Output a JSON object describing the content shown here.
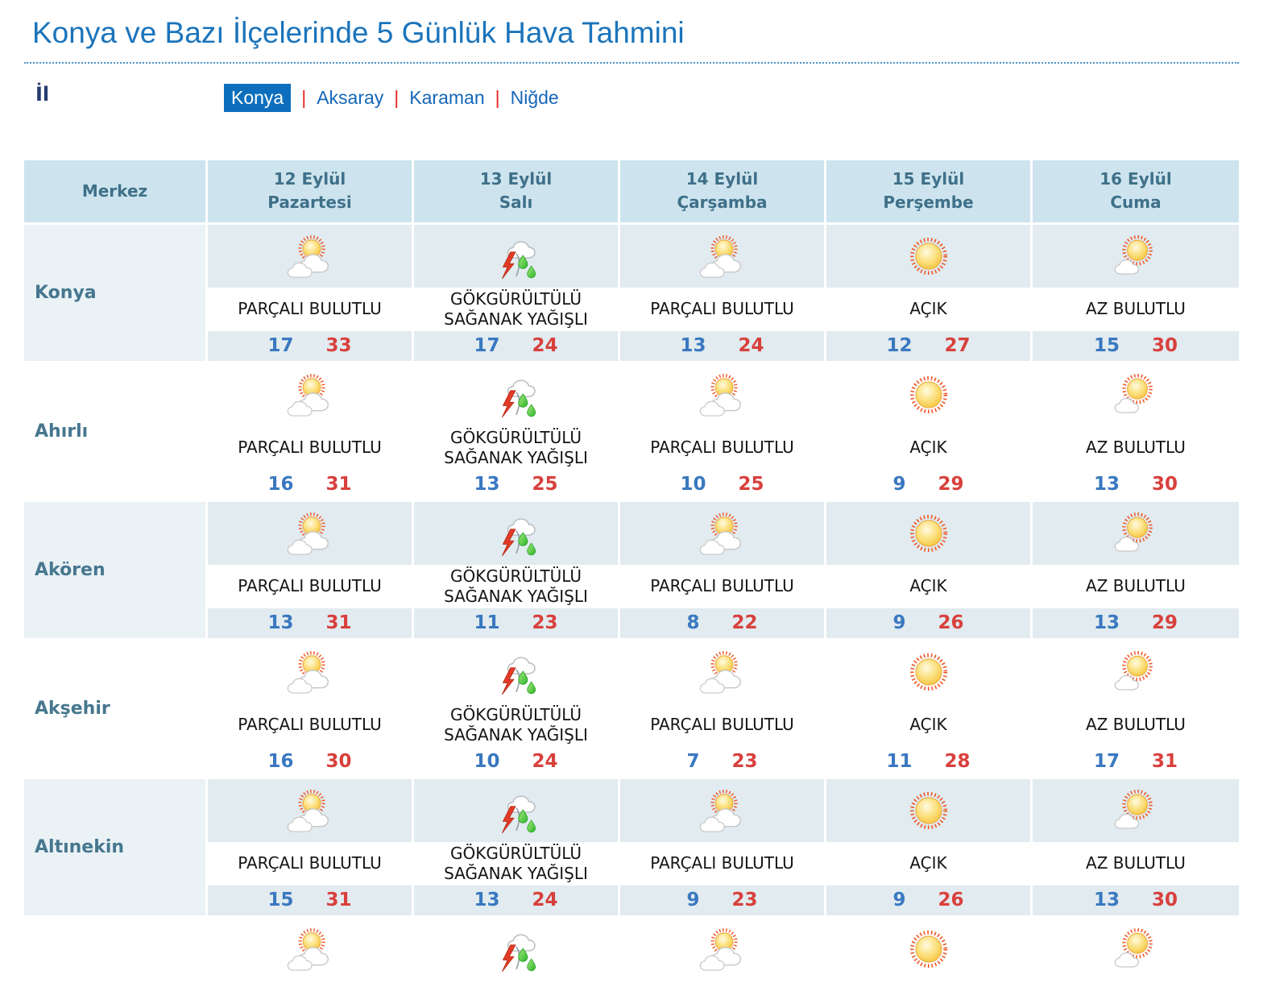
{
  "title": "Konya ve Bazı İlçelerinde 5 Günlük Hava Tahmini",
  "filter": {
    "label": "İl",
    "separator": "|",
    "selected": "Konya",
    "options": [
      "Konya",
      "Aksaray",
      "Karaman",
      "Niğde"
    ]
  },
  "table": {
    "corner": "Merkez",
    "days": [
      {
        "date": "12 Eylül",
        "name": "Pazartesi"
      },
      {
        "date": "13 Eylül",
        "name": "Salı"
      },
      {
        "date": "14 Eylül",
        "name": "Çarşamba"
      },
      {
        "date": "15 Eylül",
        "name": "Perşembe"
      },
      {
        "date": "16 Eylül",
        "name": "Cuma"
      }
    ],
    "rows": [
      {
        "name": "Konya",
        "cells": [
          {
            "icon": "partly-cloudy",
            "desc": "PARÇALI BULUTLU",
            "min": "17",
            "max": "33"
          },
          {
            "icon": "thunderstorm",
            "desc": "GÖKGÜRÜLTÜLÜ SAĞANAK YAĞIŞLI",
            "min": "17",
            "max": "24"
          },
          {
            "icon": "partly-cloudy",
            "desc": "PARÇALI BULUTLU",
            "min": "13",
            "max": "24"
          },
          {
            "icon": "clear",
            "desc": "AÇIK",
            "min": "12",
            "max": "27"
          },
          {
            "icon": "few-clouds",
            "desc": "AZ BULUTLU",
            "min": "15",
            "max": "30"
          }
        ]
      },
      {
        "name": "Ahırlı",
        "cells": [
          {
            "icon": "partly-cloudy",
            "desc": "PARÇALI BULUTLU",
            "min": "16",
            "max": "31"
          },
          {
            "icon": "thunderstorm",
            "desc": "GÖKGÜRÜLTÜLÜ SAĞANAK YAĞIŞLI",
            "min": "13",
            "max": "25"
          },
          {
            "icon": "partly-cloudy",
            "desc": "PARÇALI BULUTLU",
            "min": "10",
            "max": "25"
          },
          {
            "icon": "clear",
            "desc": "AÇIK",
            "min": "9",
            "max": "29"
          },
          {
            "icon": "few-clouds",
            "desc": "AZ BULUTLU",
            "min": "13",
            "max": "30"
          }
        ]
      },
      {
        "name": "Akören",
        "cells": [
          {
            "icon": "partly-cloudy",
            "desc": "PARÇALI BULUTLU",
            "min": "13",
            "max": "31"
          },
          {
            "icon": "thunderstorm",
            "desc": "GÖKGÜRÜLTÜLÜ SAĞANAK YAĞIŞLI",
            "min": "11",
            "max": "23"
          },
          {
            "icon": "partly-cloudy",
            "desc": "PARÇALI BULUTLU",
            "min": "8",
            "max": "22"
          },
          {
            "icon": "clear",
            "desc": "AÇIK",
            "min": "9",
            "max": "26"
          },
          {
            "icon": "few-clouds",
            "desc": "AZ BULUTLU",
            "min": "13",
            "max": "29"
          }
        ]
      },
      {
        "name": "Akşehir",
        "cells": [
          {
            "icon": "partly-cloudy",
            "desc": "PARÇALI BULUTLU",
            "min": "16",
            "max": "30"
          },
          {
            "icon": "thunderstorm",
            "desc": "GÖKGÜRÜLTÜLÜ SAĞANAK YAĞIŞLI",
            "min": "10",
            "max": "24"
          },
          {
            "icon": "partly-cloudy",
            "desc": "PARÇALI BULUTLU",
            "min": "7",
            "max": "23"
          },
          {
            "icon": "clear",
            "desc": "AÇIK",
            "min": "11",
            "max": "28"
          },
          {
            "icon": "few-clouds",
            "desc": "AZ BULUTLU",
            "min": "17",
            "max": "31"
          }
        ]
      },
      {
        "name": "Altınekin",
        "cells": [
          {
            "icon": "partly-cloudy",
            "desc": "PARÇALI BULUTLU",
            "min": "15",
            "max": "31"
          },
          {
            "icon": "thunderstorm",
            "desc": "GÖKGÜRÜLTÜLÜ SAĞANAK YAĞIŞLI",
            "min": "13",
            "max": "24"
          },
          {
            "icon": "partly-cloudy",
            "desc": "PARÇALI BULUTLU",
            "min": "9",
            "max": "23"
          },
          {
            "icon": "clear",
            "desc": "AÇIK",
            "min": "9",
            "max": "26"
          },
          {
            "icon": "few-clouds",
            "desc": "AZ BULUTLU",
            "min": "13",
            "max": "30"
          }
        ]
      }
    ],
    "partial_row_icons": [
      "partly-cloudy",
      "thunderstorm",
      "partly-cloudy",
      "clear",
      "few-clouds"
    ]
  },
  "colors": {
    "title_blue": "#1b74bb",
    "link_blue": "#1467b8",
    "selected_bg": "#0d6ebd",
    "separator_red": "#e52620",
    "header_bg": "#cde4ee",
    "header_text": "#3f7089",
    "row_band_blue": "#e1ebf0",
    "name_cell_blue": "#eaf2f6",
    "temp_min_blue": "#3a78c0",
    "temp_max_red": "#d8403c"
  }
}
